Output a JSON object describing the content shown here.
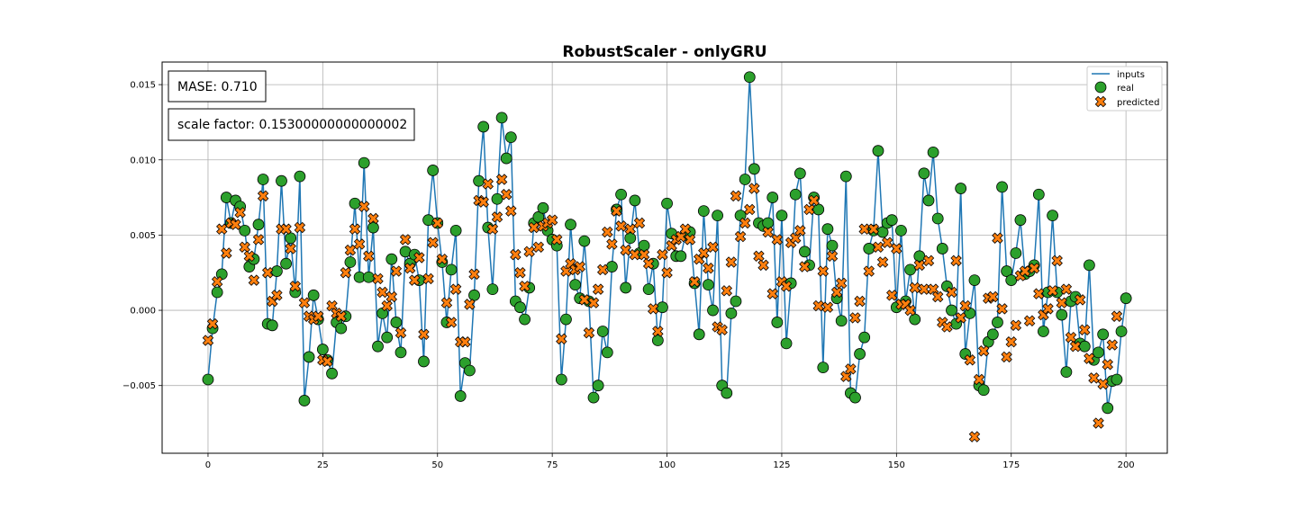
{
  "chart_data": {
    "type": "line",
    "title": "RobustScaler - onlyGRU",
    "xlabel": "",
    "ylabel": "",
    "xlim": [
      -10,
      209
    ],
    "ylim": [
      -0.0095,
      0.0165
    ],
    "x_ticks": [
      0,
      25,
      50,
      75,
      100,
      125,
      150,
      175,
      200
    ],
    "y_ticks": [
      -0.005,
      0.0,
      0.005,
      0.01,
      0.015
    ],
    "x_tick_labels": [
      "0",
      "25",
      "50",
      "75",
      "100",
      "125",
      "150",
      "175",
      "200"
    ],
    "y_tick_labels": [
      "−0.005",
      "0.000",
      "0.005",
      "0.010",
      "0.015"
    ],
    "grid": true,
    "legend_position": "top-right",
    "annotations": [
      {
        "label": "MASE: 0.710"
      },
      {
        "label": "scale factor: 0.15300000000000002"
      }
    ],
    "series": [
      {
        "name": "inputs",
        "style": "line",
        "color": "#1f77b4",
        "values": [
          -0.0046,
          -0.0012,
          0.0012,
          0.0024,
          0.0075,
          0.0058,
          0.0073,
          0.0069,
          0.0053,
          0.0029,
          0.0034,
          0.0057,
          0.0087,
          -0.0009,
          -0.001,
          0.0026,
          0.0086,
          0.0031,
          0.0048,
          0.0012,
          0.0089,
          -0.006,
          -0.0031,
          0.001,
          -0.0006,
          -0.0026,
          -0.0033,
          -0.0042,
          -0.0008,
          -0.0012,
          -0.0004,
          0.0032,
          0.0071,
          0.0022,
          0.0098,
          0.0022,
          0.0055,
          -0.0024,
          -0.0002,
          -0.0018,
          0.0034,
          -0.0008,
          -0.0028,
          0.0039,
          0.0031,
          0.0037,
          0.002,
          -0.0034,
          0.006,
          0.0093,
          0.0058,
          0.0032,
          -0.0008,
          0.0027,
          0.0053,
          -0.0057,
          -0.0035,
          -0.004,
          0.001,
          0.0086,
          0.0122,
          0.0055,
          0.0014,
          0.0074,
          0.0128,
          0.0101,
          0.0115,
          0.0006,
          0.0002,
          -0.0006,
          0.0015,
          0.0058,
          0.0062,
          0.0068,
          0.0053,
          0.0047,
          0.0043,
          -0.0046,
          -0.0006,
          0.0057,
          0.0017,
          0.0008,
          0.0046,
          0.0006,
          -0.0058,
          -0.005,
          -0.0014,
          -0.0028,
          0.0029,
          0.0067,
          0.0077,
          0.0015,
          0.0048,
          0.0073,
          0.0038,
          0.0043,
          0.0014,
          0.0031,
          -0.002,
          0.0002,
          0.0071,
          0.0051,
          0.0036,
          0.0036,
          0.005,
          0.0052,
          0.0018,
          -0.0016,
          0.0066,
          0.0017,
          0.0,
          0.0063,
          -0.005,
          -0.0055,
          -0.0002,
          0.0006,
          0.0063,
          0.0087,
          0.0155,
          0.0094,
          0.0058,
          0.0056,
          0.0058,
          0.0075,
          -0.0008,
          0.0063,
          -0.0022,
          0.0018,
          0.0077,
          0.0091,
          0.0039,
          0.003,
          0.0075,
          0.0067,
          -0.0038,
          0.0054,
          0.0043,
          0.0008,
          -0.0007,
          0.0089,
          -0.0055,
          -0.0058,
          -0.0029,
          -0.0018,
          0.0041,
          0.0053,
          0.0106,
          0.0052,
          0.0058,
          0.006,
          0.0002,
          0.0053,
          0.0006,
          0.0027,
          -0.0006,
          0.0036,
          0.0091,
          0.0073,
          0.0105,
          0.0061,
          0.0041,
          0.0016,
          0.0,
          -0.0009,
          0.0081,
          -0.0029,
          -0.0002,
          0.002,
          -0.005,
          -0.0053,
          -0.0021,
          -0.0016,
          -0.0008,
          0.0082,
          0.0026,
          0.002,
          0.0038,
          0.006,
          0.0024,
          0.0026,
          0.003,
          0.0077,
          -0.0014,
          0.0012,
          0.0063,
          0.0012,
          -0.0003,
          -0.0041,
          0.0006,
          0.0009,
          -0.0022,
          -0.0024,
          0.003,
          -0.0033,
          -0.0028,
          -0.0016,
          -0.0065,
          -0.0047,
          -0.0046,
          -0.0014,
          0.0008
        ]
      },
      {
        "name": "real",
        "style": "marker-circle",
        "color": "#2ca02c",
        "values": [
          -0.0046,
          -0.0012,
          0.0012,
          0.0024,
          0.0075,
          0.0058,
          0.0073,
          0.0069,
          0.0053,
          0.0029,
          0.0034,
          0.0057,
          0.0087,
          -0.0009,
          -0.001,
          0.0026,
          0.0086,
          0.0031,
          0.0048,
          0.0012,
          0.0089,
          -0.006,
          -0.0031,
          0.001,
          -0.0006,
          -0.0026,
          -0.0033,
          -0.0042,
          -0.0008,
          -0.0012,
          -0.0004,
          0.0032,
          0.0071,
          0.0022,
          0.0098,
          0.0022,
          0.0055,
          -0.0024,
          -0.0002,
          -0.0018,
          0.0034,
          -0.0008,
          -0.0028,
          0.0039,
          0.0031,
          0.0037,
          0.002,
          -0.0034,
          0.006,
          0.0093,
          0.0058,
          0.0032,
          -0.0008,
          0.0027,
          0.0053,
          -0.0057,
          -0.0035,
          -0.004,
          0.001,
          0.0086,
          0.0122,
          0.0055,
          0.0014,
          0.0074,
          0.0128,
          0.0101,
          0.0115,
          0.0006,
          0.0002,
          -0.0006,
          0.0015,
          0.0058,
          0.0062,
          0.0068,
          0.0053,
          0.0047,
          0.0043,
          -0.0046,
          -0.0006,
          0.0057,
          0.0017,
          0.0008,
          0.0046,
          0.0006,
          -0.0058,
          -0.005,
          -0.0014,
          -0.0028,
          0.0029,
          0.0067,
          0.0077,
          0.0015,
          0.0048,
          0.0073,
          0.0038,
          0.0043,
          0.0014,
          0.0031,
          -0.002,
          0.0002,
          0.0071,
          0.0051,
          0.0036,
          0.0036,
          0.005,
          0.0052,
          0.0018,
          -0.0016,
          0.0066,
          0.0017,
          0.0,
          0.0063,
          -0.005,
          -0.0055,
          -0.0002,
          0.0006,
          0.0063,
          0.0087,
          0.0155,
          0.0094,
          0.0058,
          0.0056,
          0.0058,
          0.0075,
          -0.0008,
          0.0063,
          -0.0022,
          0.0018,
          0.0077,
          0.0091,
          0.0039,
          0.003,
          0.0075,
          0.0067,
          -0.0038,
          0.0054,
          0.0043,
          0.0008,
          -0.0007,
          0.0089,
          -0.0055,
          -0.0058,
          -0.0029,
          -0.0018,
          0.0041,
          0.0053,
          0.0106,
          0.0052,
          0.0058,
          0.006,
          0.0002,
          0.0053,
          0.0006,
          0.0027,
          -0.0006,
          0.0036,
          0.0091,
          0.0073,
          0.0105,
          0.0061,
          0.0041,
          0.0016,
          0.0,
          -0.0009,
          0.0081,
          -0.0029,
          -0.0002,
          0.002,
          -0.005,
          -0.0053,
          -0.0021,
          -0.0016,
          -0.0008,
          0.0082,
          0.0026,
          0.002,
          0.0038,
          0.006,
          0.0024,
          0.0026,
          0.003,
          0.0077,
          -0.0014,
          0.0012,
          0.0063,
          0.0012,
          -0.0003,
          -0.0041,
          0.0006,
          0.0009,
          -0.0022,
          -0.0024,
          0.003,
          -0.0033,
          -0.0028,
          -0.0016,
          -0.0065,
          -0.0047,
          -0.0046,
          -0.0014,
          0.0008
        ]
      },
      {
        "name": "predicted",
        "style": "marker-x",
        "color": "#ff7f0e",
        "values": [
          -0.002,
          -0.0009,
          0.0019,
          0.0054,
          0.0038,
          0.0058,
          0.0057,
          0.0065,
          0.0042,
          0.0036,
          0.002,
          0.0047,
          0.0076,
          0.0025,
          0.0006,
          0.001,
          0.0054,
          0.0054,
          0.0041,
          0.0016,
          0.0055,
          0.0005,
          -0.0004,
          -0.0006,
          -0.0004,
          -0.0033,
          -0.0034,
          0.0003,
          -0.0002,
          -0.0004,
          0.0025,
          0.004,
          0.0054,
          0.0044,
          0.0069,
          0.0036,
          0.0061,
          0.0021,
          0.0012,
          0.0003,
          0.0009,
          0.0026,
          -0.0015,
          0.0047,
          0.0028,
          0.002,
          0.0035,
          -0.0016,
          0.0021,
          0.0045,
          0.0058,
          0.0034,
          0.0005,
          -0.0008,
          0.0014,
          -0.0021,
          -0.0021,
          0.0004,
          0.0024,
          0.0073,
          0.0072,
          0.0084,
          0.0054,
          0.0062,
          0.0087,
          0.0077,
          0.0066,
          0.0037,
          0.0025,
          0.0016,
          0.0039,
          0.0055,
          0.0042,
          0.0056,
          0.0058,
          0.006,
          0.0047,
          -0.0019,
          0.0026,
          0.0031,
          0.0027,
          0.0029,
          0.0007,
          -0.0015,
          0.0005,
          0.0014,
          0.0027,
          0.0052,
          0.0044,
          0.0066,
          0.0056,
          0.004,
          0.0054,
          0.0037,
          0.0058,
          0.0037,
          0.0031,
          0.0001,
          -0.0014,
          0.0037,
          0.0025,
          0.0043,
          0.0047,
          0.0049,
          0.0054,
          0.0047,
          0.0019,
          0.0034,
          0.0038,
          0.0028,
          0.0042,
          -0.0011,
          -0.0013,
          0.0013,
          0.0032,
          0.0076,
          0.0049,
          0.0058,
          0.0067,
          0.0081,
          0.0036,
          0.003,
          0.0052,
          0.0011,
          0.0047,
          0.0019,
          0.0016,
          0.0045,
          0.0048,
          0.0053,
          0.0029,
          0.0067,
          0.0073,
          0.0003,
          0.0026,
          0.0002,
          0.0036,
          0.0012,
          0.0018,
          -0.0044,
          -0.0039,
          -0.0005,
          0.0006,
          0.0054,
          0.0026,
          0.0054,
          0.0042,
          0.0032,
          0.0045,
          0.001,
          0.0041,
          0.0004,
          0.0004,
          0.0,
          0.0015,
          0.003,
          0.0014,
          0.0033,
          0.0014,
          0.0009,
          -0.0008,
          -0.0011,
          0.0012,
          0.0033,
          -0.0005,
          0.0003,
          -0.0033,
          -0.0084,
          -0.0046,
          -0.0027,
          0.0008,
          0.0009,
          0.0048,
          0.0001,
          -0.0031,
          -0.0021,
          -0.001,
          0.0023,
          0.0026,
          -0.0007,
          0.0028,
          0.0011,
          -0.0003,
          0.0001,
          0.0013,
          0.0033,
          0.0005,
          0.0014,
          -0.0018,
          -0.0024,
          0.0007,
          -0.0013,
          -0.0032,
          -0.0045,
          -0.0075,
          -0.0049,
          -0.0036,
          -0.0023,
          -0.0004
        ]
      }
    ]
  }
}
